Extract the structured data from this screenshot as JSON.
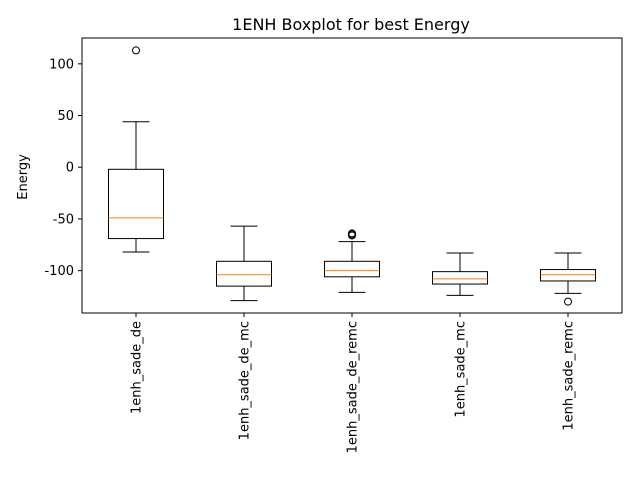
{
  "chart_data": {
    "type": "box",
    "title": "1ENH Boxplot for best Energy",
    "xlabel": "",
    "ylabel": "Energy",
    "ylim": [
      -141,
      125
    ],
    "yticks": [
      -100,
      -50,
      0,
      50,
      100
    ],
    "grid": false,
    "categories": [
      "1enh_sade_de",
      "1enh_sade_de_mc",
      "1enh_sade_de_remc",
      "1enh_sade_mc",
      "1enh_sade_remc"
    ],
    "boxes": [
      {
        "whisker_low": -82,
        "q1": -69,
        "median": -49,
        "q3": -2,
        "whisker_high": 44,
        "outliers": [
          113
        ]
      },
      {
        "whisker_low": -129,
        "q1": -115,
        "median": -104,
        "q3": -91,
        "whisker_high": -57,
        "outliers": []
      },
      {
        "whisker_low": -121,
        "q1": -106,
        "median": -100,
        "q3": -91,
        "whisker_high": -72,
        "outliers": [
          -64,
          -65,
          -66
        ]
      },
      {
        "whisker_low": -124,
        "q1": -113,
        "median": -108,
        "q3": -101,
        "whisker_high": -83,
        "outliers": []
      },
      {
        "whisker_low": -122,
        "q1": -110,
        "median": -104,
        "q3": -99,
        "whisker_high": -83,
        "outliers": [
          -130
        ]
      }
    ]
  },
  "colors": {
    "box": "#000000",
    "median": "#ff7f0e",
    "outlier": "#000000"
  }
}
